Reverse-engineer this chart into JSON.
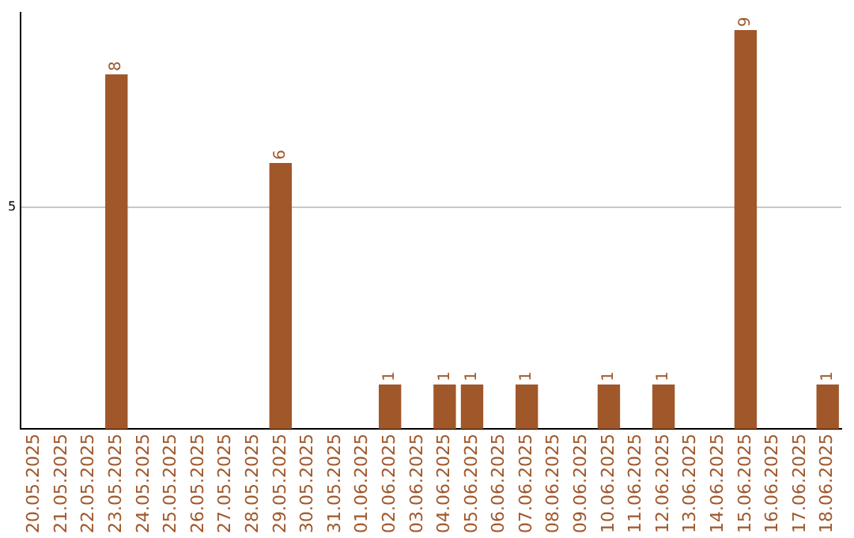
{
  "chart_data": {
    "type": "bar",
    "categories": [
      "20.05.2025",
      "21.05.2025",
      "22.05.2025",
      "23.05.2025",
      "24.05.2025",
      "25.05.2025",
      "26.05.2025",
      "27.05.2025",
      "28.05.2025",
      "29.05.2025",
      "30.05.2025",
      "31.05.2025",
      "01.06.2025",
      "02.06.2025",
      "03.06.2025",
      "04.06.2025",
      "05.06.2025",
      "06.06.2025",
      "07.06.2025",
      "08.06.2025",
      "09.06.2025",
      "10.06.2025",
      "11.06.2025",
      "12.06.2025",
      "13.06.2025",
      "14.06.2025",
      "15.06.2025",
      "16.06.2025",
      "17.06.2025",
      "18.06.2025"
    ],
    "values": [
      0,
      0,
      0,
      8,
      0,
      0,
      0,
      0,
      0,
      6,
      0,
      0,
      0,
      1,
      0,
      1,
      1,
      0,
      1,
      0,
      0,
      1,
      0,
      1,
      0,
      0,
      9,
      0,
      0,
      1
    ],
    "value_labels": [
      null,
      null,
      null,
      "8",
      null,
      null,
      null,
      null,
      null,
      "6",
      null,
      null,
      null,
      "1",
      null,
      "1",
      "1",
      null,
      "1",
      null,
      null,
      "1",
      null,
      "1",
      null,
      null,
      "9",
      null,
      null,
      "1"
    ],
    "color": "#a0572a",
    "ylim": [
      0,
      9.4
    ],
    "yticks": [
      5
    ],
    "grid": "y",
    "legend": false
  }
}
